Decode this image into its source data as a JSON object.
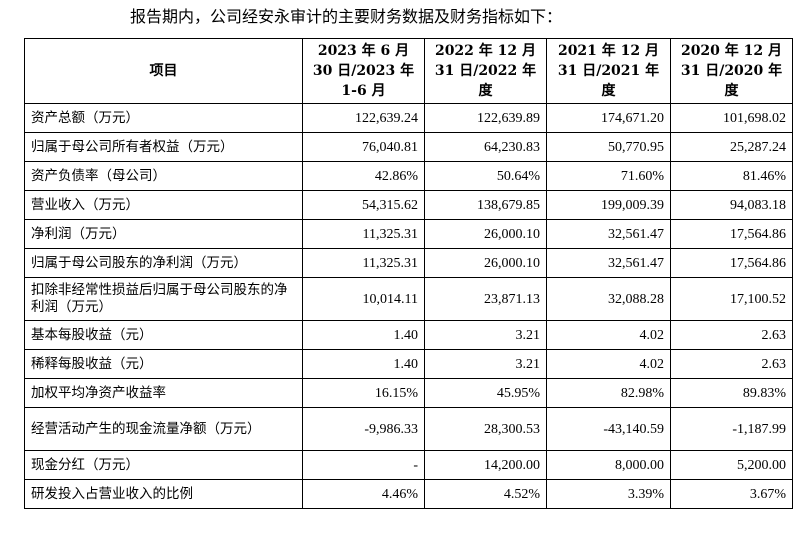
{
  "intro": "报告期内，公司经安永审计的主要财务数据及财务指标如下：",
  "table": {
    "header": [
      "项目",
      "2023 年 6 月 30 日/2023 年 1-6 月",
      "2022 年 12 月 31 日/2022 年度",
      "2021 年 12 月 31 日/2021 年度",
      "2020 年 12 月 31 日/2020 年度"
    ],
    "rows": [
      {
        "label": "资产总额（万元）",
        "values": [
          "122,639.24",
          "122,639.89",
          "174,671.20",
          "101,698.02"
        ]
      },
      {
        "label": "归属于母公司所有者权益（万元）",
        "values": [
          "76,040.81",
          "64,230.83",
          "50,770.95",
          "25,287.24"
        ]
      },
      {
        "label": "资产负债率（母公司）",
        "values": [
          "42.86%",
          "50.64%",
          "71.60%",
          "81.46%"
        ]
      },
      {
        "label": "营业收入（万元）",
        "values": [
          "54,315.62",
          "138,679.85",
          "199,009.39",
          "94,083.18"
        ]
      },
      {
        "label": "净利润（万元）",
        "values": [
          "11,325.31",
          "26,000.10",
          "32,561.47",
          "17,564.86"
        ]
      },
      {
        "label": "归属于母公司股东的净利润（万元）",
        "values": [
          "11,325.31",
          "26,000.10",
          "32,561.47",
          "17,564.86"
        ]
      },
      {
        "label": "扣除非经常性损益后归属于母公司股东的净利润（万元）",
        "values": [
          "10,014.11",
          "23,871.13",
          "32,088.28",
          "17,100.52"
        ]
      },
      {
        "label": "基本每股收益（元）",
        "values": [
          "1.40",
          "3.21",
          "4.02",
          "2.63"
        ]
      },
      {
        "label": "稀释每股收益（元）",
        "values": [
          "1.40",
          "3.21",
          "4.02",
          "2.63"
        ]
      },
      {
        "label": "加权平均净资产收益率",
        "values": [
          "16.15%",
          "45.95%",
          "82.98%",
          "89.83%"
        ]
      },
      {
        "label": "经营活动产生的现金流量净额（万元）",
        "values": [
          "-9,986.33",
          "28,300.53",
          "-43,140.59",
          "-1,187.99"
        ]
      },
      {
        "label": "现金分红（万元）",
        "values": [
          "-",
          "14,200.00",
          "8,000.00",
          "5,200.00"
        ]
      },
      {
        "label": "研发投入占营业收入的比例",
        "values": [
          "4.46%",
          "4.52%",
          "3.39%",
          "3.67%"
        ]
      }
    ]
  }
}
